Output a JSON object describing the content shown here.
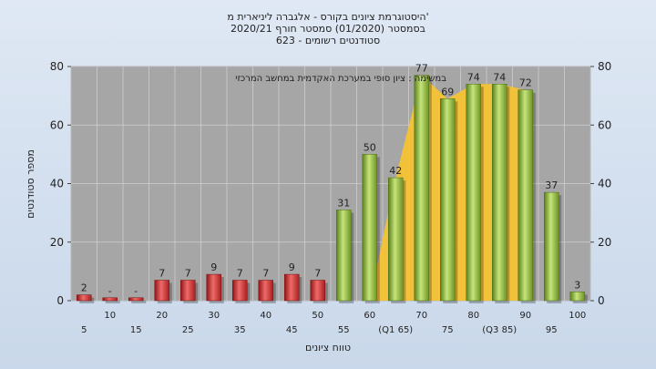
{
  "chart_data": {
    "type": "bar",
    "title_lines": [
      "היסטוגרמת ציונים בקורס - אלגברה ליניארית מ'",
      "בסמסטר  (01/2020)  סמסטר חורף 2020/21",
      "623 - סטודנטים רשומים"
    ],
    "xlabel": "טווח ציונים",
    "ylabel": "מספר סטודנטים",
    "ylim": [
      0,
      80
    ],
    "yticks": [
      0,
      20,
      40,
      60,
      80
    ],
    "annotation": "במשימה : ציון סופי במערכת האקדמית במחשב המרכזי",
    "categories": [
      "5",
      "10",
      "15",
      "20",
      "25",
      "30",
      "35",
      "40",
      "45",
      "50",
      "55",
      "60",
      "(Q1 65)",
      "70",
      "75",
      "80",
      "(Q3 85)",
      "90",
      "95",
      "100"
    ],
    "values": [
      2,
      1,
      1,
      7,
      7,
      9,
      7,
      7,
      9,
      7,
      31,
      50,
      42,
      77,
      69,
      74,
      74,
      72,
      37,
      3
    ],
    "value_labels": [
      "2",
      "-",
      "-",
      "7",
      "7",
      "9",
      "7",
      "7",
      "9",
      "7",
      "31",
      "50",
      "42",
      "77",
      "69",
      "74",
      "74",
      "72",
      "37",
      "3"
    ],
    "bar_colors": [
      "#d63a3a",
      "#d63a3a",
      "#d63a3a",
      "#d63a3a",
      "#d63a3a",
      "#d63a3a",
      "#d63a3a",
      "#d63a3a",
      "#d63a3a",
      "#d63a3a",
      "#8ab83c",
      "#8ab83c",
      "#8ab83c",
      "#8ab83c",
      "#8ab83c",
      "#8ab83c",
      "#8ab83c",
      "#8ab83c",
      "#8ab83c",
      "#8ab83c"
    ],
    "quartile_band": {
      "from_category": "(Q1 65)",
      "to_category": "(Q3 85)",
      "color": "#f5c234"
    },
    "grid": true,
    "plot_background": "#a6a6a6"
  }
}
